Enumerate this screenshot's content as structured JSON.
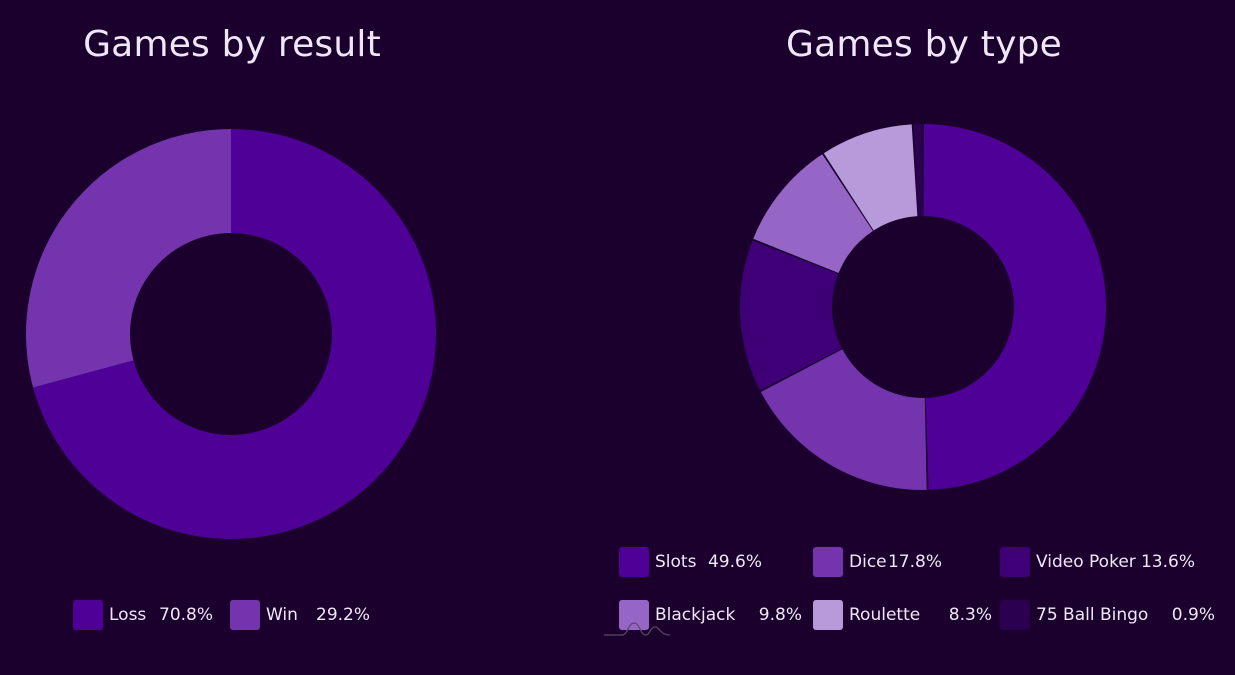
{
  "colors": {
    "background": "#1b002e",
    "text": "#efe7f7"
  },
  "chart_data": [
    {
      "type": "pie",
      "title": "Games by result",
      "donut": true,
      "legend": "bottom",
      "categories": [
        "Loss",
        "Win"
      ],
      "values": [
        70.8,
        29.2
      ],
      "value_labels": [
        "70.8%",
        "29.2%"
      ],
      "colors": [
        "#4f0096",
        "#7434ad"
      ]
    },
    {
      "type": "pie",
      "title": "Games by type",
      "donut": true,
      "legend": "bottom",
      "categories": [
        "Slots",
        "Dice",
        "Video Poker",
        "Blackjack",
        "Roulette",
        "75 Ball Bingo"
      ],
      "values": [
        49.6,
        17.8,
        13.6,
        9.8,
        8.3,
        0.9
      ],
      "value_labels": [
        "49.6%",
        "17.8%",
        "13.6%",
        "9.8%",
        "8.3%",
        "0.9%"
      ],
      "colors": [
        "#4f0096",
        "#7434ad",
        "#3f0077",
        "#9566c5",
        "#b899d9",
        "#2c0050"
      ]
    }
  ]
}
